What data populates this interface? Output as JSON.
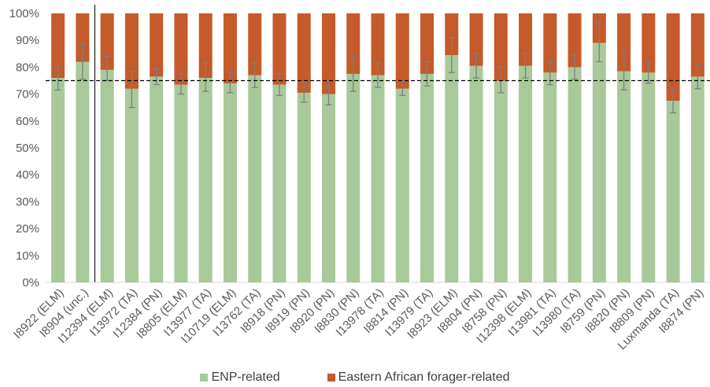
{
  "chart_data": {
    "type": "bar",
    "stacked": true,
    "percent": true,
    "title": "",
    "xlabel": "",
    "ylabel": "",
    "ylim": [
      0,
      100
    ],
    "yticks": [
      "0%",
      "10%",
      "20%",
      "30%",
      "40%",
      "50%",
      "60%",
      "70%",
      "80%",
      "90%",
      "100%"
    ],
    "reference_line": {
      "value": 75,
      "style": "dashed"
    },
    "group_separator_after": "I8904 (unc.)",
    "categories": [
      "I8922 (ELM)",
      "I8904 (unc.)",
      "I12394 (ELM)",
      "I13972 (TA)",
      "I12384 (PN)",
      "I8805 (ELM)",
      "I13977 (TA)",
      "I10719 (ELM)",
      "I13762 (TA)",
      "I8918 (PN)",
      "I8919 (PN)",
      "I8920 (PN)",
      "I8830 (PN)",
      "I13978 (TA)",
      "I8814 (PN)",
      "I13979 (TA)",
      "I8923 (ELM)",
      "I8804 (PN)",
      "I8758 (PN)",
      "I12398 (ELM)",
      "I13981 (TA)",
      "I13980 (TA)",
      "I8759 (PN)",
      "I8820 (PN)",
      "I8809 (PN)",
      "Luxmanda (TA)",
      "I8874 (PN)"
    ],
    "series": [
      {
        "name": "ENP-related",
        "color": "#a9c99a",
        "values": [
          76,
          82,
          79,
          72,
          76.5,
          73.5,
          76,
          74,
          77,
          73.5,
          70.5,
          70,
          77.5,
          77,
          72,
          77.5,
          84.5,
          80.5,
          75,
          80.5,
          78,
          80,
          89,
          78.5,
          78,
          67.5,
          76.5
        ]
      },
      {
        "name": "Eastern African forager-related",
        "color": "#c55a2a",
        "values": [
          24,
          18,
          21,
          28,
          23.5,
          26.5,
          24,
          26,
          23,
          26.5,
          29.5,
          30,
          22.5,
          23,
          28,
          22.5,
          15.5,
          19.5,
          25,
          19.5,
          22,
          20,
          11,
          21.5,
          22,
          32.5,
          23.5
        ]
      }
    ],
    "error_bars": {
      "series": "ENP-related",
      "lower": [
        71.5,
        75.5,
        75,
        65,
        73.5,
        70,
        71,
        70.5,
        72.5,
        69.5,
        67,
        66,
        71,
        72.5,
        69.5,
        73,
        78,
        76,
        70.5,
        76,
        73.5,
        75.5,
        82,
        71.5,
        74,
        63,
        72
      ],
      "upper": [
        80.5,
        88.5,
        84,
        78.5,
        79.5,
        77.5,
        81.5,
        78,
        81.5,
        77.5,
        74.5,
        75,
        84,
        81.5,
        75,
        82,
        91,
        85,
        80,
        85,
        82.5,
        84.5,
        96.5,
        86,
        82,
        72,
        81
      ]
    },
    "legend_position": "bottom"
  }
}
